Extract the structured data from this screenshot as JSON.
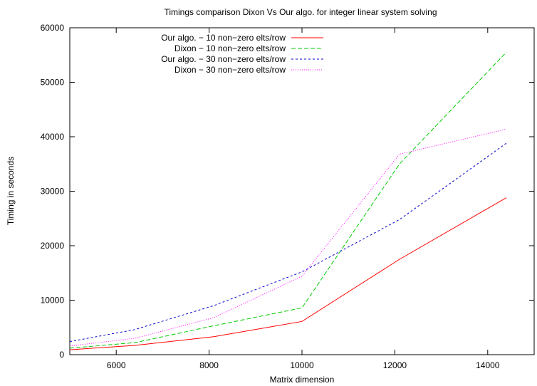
{
  "chart_data": {
    "type": "line",
    "title": "Timings comparison  Dixon Vs Our algo. for integer linear system solving",
    "xlabel": "Matrix dimension",
    "ylabel": "Timing in seconds",
    "xlim": [
      5000,
      15000
    ],
    "ylim": [
      0,
      60000
    ],
    "xticks": [
      6000,
      8000,
      10000,
      12000,
      14000
    ],
    "yticks": [
      0,
      10000,
      20000,
      30000,
      40000,
      50000,
      60000
    ],
    "legend_position": "top-left",
    "grid": false,
    "series": [
      {
        "name": "Our algo. − 10 non−zero elts/row",
        "color": "#ff0000",
        "dash": "solid",
        "x": [
          5000,
          6400,
          8100,
          10000,
          12100,
          14400
        ],
        "y": [
          900,
          1700,
          3300,
          6100,
          17500,
          28800
        ]
      },
      {
        "name": "Dixon  − 10 non−zero elts/row",
        "color": "#00cc00",
        "dash": "dashed",
        "x": [
          5000,
          6400,
          8100,
          10000,
          12100,
          14400
        ],
        "y": [
          1200,
          2200,
          5300,
          8600,
          35000,
          55500
        ]
      },
      {
        "name": "Our algo. − 30 non−zero elts/row",
        "color": "#0000cc",
        "dash": "dotted",
        "x": [
          5000,
          6400,
          8100,
          10000,
          12100,
          14400
        ],
        "y": [
          2400,
          4600,
          9000,
          15200,
          24800,
          38800
        ]
      },
      {
        "name": "Dixon  − 30 non−zero elts/row",
        "color": "#ff00ff",
        "dash": "fine-dotted",
        "x": [
          5000,
          6400,
          8100,
          10000,
          12100,
          14400
        ],
        "y": [
          1600,
          3000,
          6800,
          14400,
          36800,
          41400
        ]
      }
    ]
  }
}
